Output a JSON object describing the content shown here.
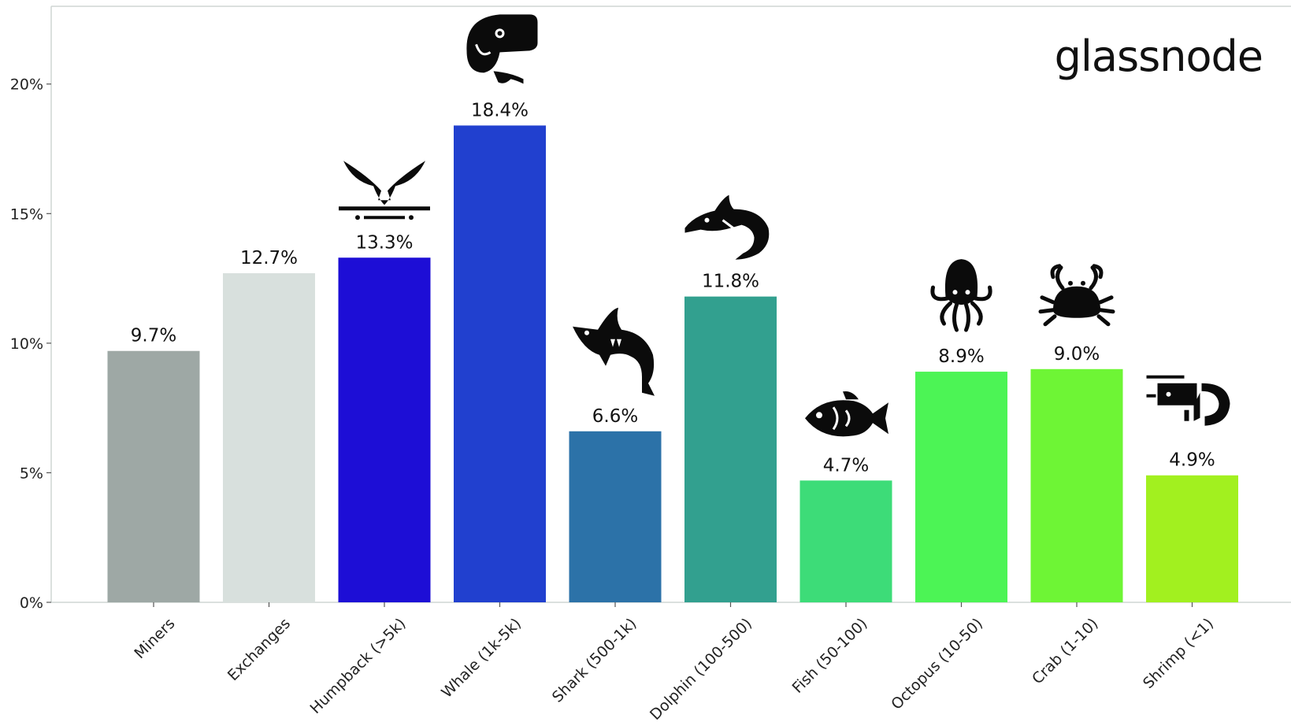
{
  "brand": "glassnode",
  "chart_data": {
    "type": "bar",
    "categories": [
      "Miners",
      "Exchanges",
      "Humpback (>5k)",
      "Whale (1k-5k)",
      "Shark (500-1k)",
      "Dolphin (100-500)",
      "Fish (50-100)",
      "Octopus (10-50)",
      "Crab (1-10)",
      "Shrimp (<1)"
    ],
    "values": [
      9.7,
      12.7,
      13.3,
      18.4,
      6.6,
      11.8,
      4.7,
      8.9,
      9.0,
      4.9
    ],
    "value_labels": [
      "9.7%",
      "12.7%",
      "13.3%",
      "18.4%",
      "6.6%",
      "11.8%",
      "4.7%",
      "8.9%",
      "9.0%",
      "4.9%"
    ],
    "colors": [
      "#9ea8a5",
      "#d8e0dd",
      "#1d0ed6",
      "#2140cf",
      "#2c72a8",
      "#32a08f",
      "#3ddc78",
      "#4cf455",
      "#6ef535",
      "#a2f01f"
    ],
    "icons": [
      null,
      null,
      "humpback-icon",
      "whale-icon",
      "shark-icon",
      "dolphin-icon",
      "fish-icon",
      "octopus-icon",
      "crab-icon",
      "shrimp-icon"
    ],
    "y_ticks": [
      0,
      5,
      10,
      15,
      20
    ],
    "y_tick_labels": [
      "0%",
      "5%",
      "10%",
      "15%",
      "20%"
    ],
    "ylim": [
      0,
      23
    ],
    "title": "",
    "xlabel": "",
    "ylabel": "",
    "grid": false
  }
}
